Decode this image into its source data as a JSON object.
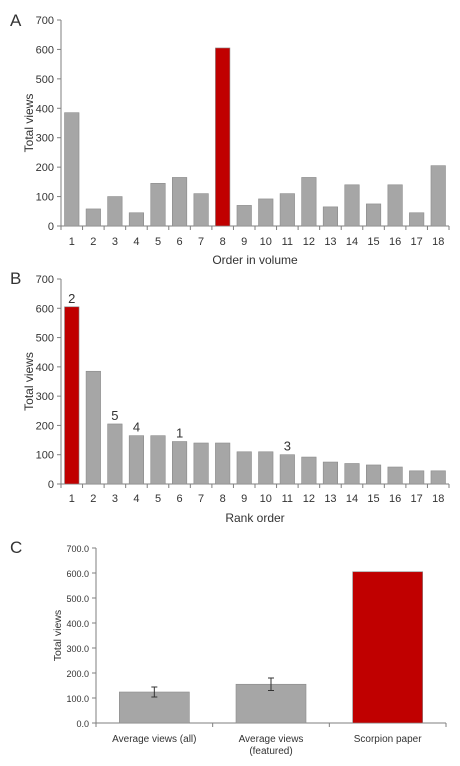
{
  "colors": {
    "bar": "#a6a6a6",
    "highlight": "#c00000",
    "axis": "#7f7f7f",
    "grid_text": "#333333"
  },
  "chart_data": [
    {
      "panel": "A",
      "type": "bar",
      "xlabel": "Order in volume",
      "ylabel": "Total views",
      "ylim": [
        0,
        700
      ],
      "yticks": [
        "0",
        "100",
        "200",
        "300",
        "400",
        "500",
        "600",
        "700"
      ],
      "categories": [
        "1",
        "2",
        "3",
        "4",
        "5",
        "6",
        "7",
        "8",
        "9",
        "10",
        "11",
        "12",
        "13",
        "14",
        "15",
        "16",
        "17",
        "18"
      ],
      "values": [
        385,
        58,
        100,
        45,
        145,
        165,
        110,
        605,
        70,
        92,
        110,
        165,
        65,
        140,
        75,
        140,
        45,
        205
      ],
      "highlight_index": 7
    },
    {
      "panel": "B",
      "type": "bar",
      "xlabel": "Rank order",
      "ylabel": "Total views",
      "ylim": [
        0,
        700
      ],
      "yticks": [
        "0",
        "100",
        "200",
        "300",
        "400",
        "500",
        "600",
        "700"
      ],
      "categories": [
        "1",
        "2",
        "3",
        "4",
        "5",
        "6",
        "7",
        "8",
        "9",
        "10",
        "11",
        "12",
        "13",
        "14",
        "15",
        "16",
        "17",
        "18"
      ],
      "values": [
        605,
        385,
        205,
        165,
        165,
        145,
        140,
        140,
        110,
        110,
        100,
        92,
        75,
        70,
        65,
        58,
        45,
        45
      ],
      "highlight_index": 0,
      "annotations": [
        {
          "index": 0,
          "text": "2"
        },
        {
          "index": 2,
          "text": "5"
        },
        {
          "index": 3,
          "text": "4"
        },
        {
          "index": 5,
          "text": "1"
        },
        {
          "index": 10,
          "text": "3"
        }
      ]
    },
    {
      "panel": "C",
      "type": "bar",
      "xlabel": "",
      "ylabel": "Total views",
      "ylim": [
        0,
        700
      ],
      "yticks": [
        "0.0",
        "100.0",
        "200.0",
        "300.0",
        "400.0",
        "500.0",
        "600.0",
        "700.0"
      ],
      "categories": [
        [
          "Average views (all)"
        ],
        [
          "Average views",
          "(featured)"
        ],
        [
          "Scorpion paper"
        ]
      ],
      "values": [
        124,
        155,
        605
      ],
      "error": [
        20,
        25,
        null
      ],
      "highlight_index": 2
    }
  ]
}
